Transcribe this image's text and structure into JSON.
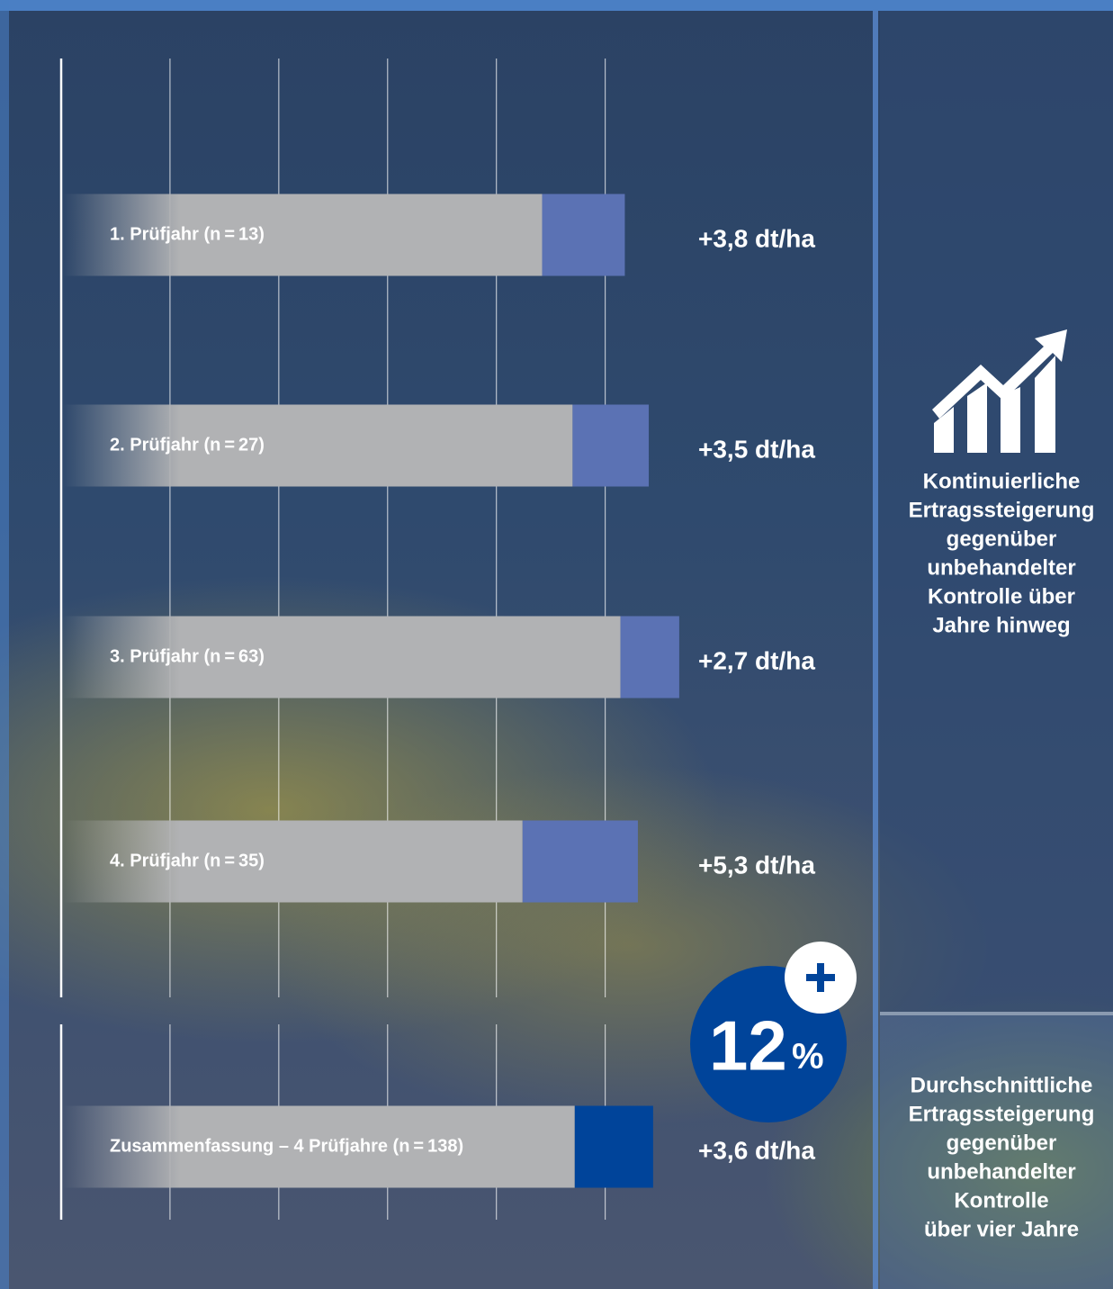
{
  "chart_data": {
    "type": "bar",
    "orientation": "horizontal",
    "stacked": true,
    "categories": [
      "1. Prüfjahr (n = 13)",
      "2. Prüfjahr (n = 27)",
      "3. Prüfjahr (n = 63)",
      "4. Prüfjahr (n = 35)",
      "Zusammenfassung – 4 Prüfjahre (n = 138)"
    ],
    "series": [
      {
        "color": "#b1b2b4",
        "values": [
          22.1,
          23.5,
          25.7,
          21.2,
          23.6
        ]
      },
      {
        "colors": [
          "#5b72b4",
          "#5b72b4",
          "#5b72b4",
          "#5b72b4",
          "#00449a"
        ],
        "values": [
          3.8,
          3.5,
          2.7,
          5.3,
          3.6
        ],
        "value_labels": [
          "+3,8 dt/ha",
          "+3,5 dt/ha",
          "+2,7 dt/ha",
          "+5,3 dt/ha",
          "+3,6 dt/ha"
        ]
      }
    ],
    "xlim": [
      0,
      37.5
    ],
    "xticks": [
      0,
      5,
      10,
      15,
      20,
      25
    ],
    "grid": true,
    "badge_value": 12,
    "badge_unit": "%"
  },
  "side_notes": [
    [
      "Kontinuierliche",
      "Ertragssteigerung",
      "gegenüber",
      "unbehandelter",
      "Kontrolle über",
      "Jahre hinweg"
    ],
    [
      "Durchschnittliche",
      "Ertragssteigerung",
      "gegenüber",
      "unbehandelter",
      "Kontrolle",
      "über vier Jahre"
    ]
  ]
}
